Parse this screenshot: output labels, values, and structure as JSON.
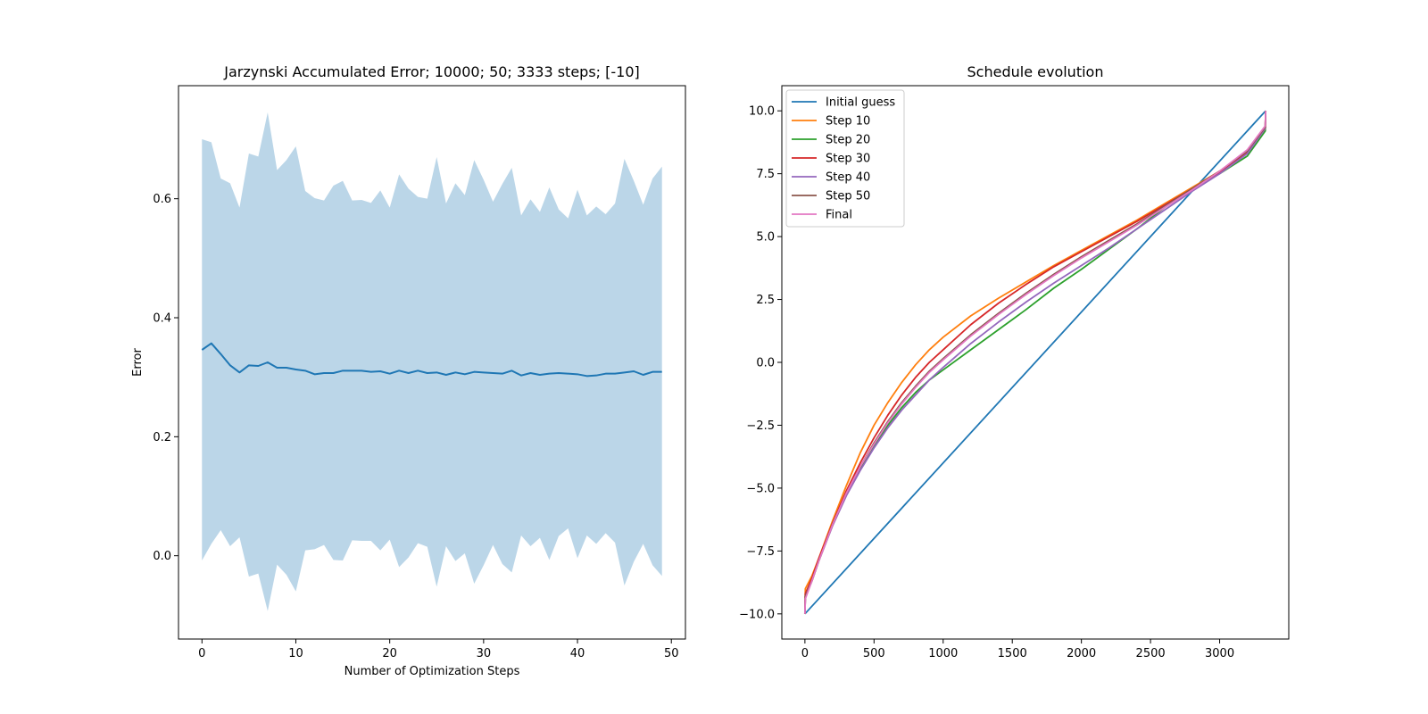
{
  "chart_data": [
    {
      "type": "line",
      "title": "Jarzynski Accumulated Error; 10000; 50; 3333 steps; [-10]",
      "xlabel": "Number of Optimization Steps",
      "ylabel": "Error",
      "xlim": [
        -2.5,
        51.5
      ],
      "ylim": [
        -0.14,
        0.79
      ],
      "xticks": [
        0,
        10,
        20,
        30,
        40,
        50
      ],
      "xtick_labels": [
        "0",
        "10",
        "20",
        "30",
        "40",
        "50"
      ],
      "yticks": [
        0.0,
        0.2,
        0.4,
        0.6
      ],
      "ytick_labels": [
        "0.0",
        "0.2",
        "0.4",
        "0.6"
      ],
      "grid": false,
      "line_color": "#1f77b4",
      "band_color": "#1f77b4",
      "band_opacity": 0.3,
      "x": [
        0,
        1,
        2,
        3,
        4,
        5,
        6,
        7,
        8,
        9,
        10,
        11,
        12,
        13,
        14,
        15,
        16,
        17,
        18,
        19,
        20,
        21,
        22,
        23,
        24,
        25,
        26,
        27,
        28,
        29,
        30,
        31,
        32,
        33,
        34,
        35,
        36,
        37,
        38,
        39,
        40,
        41,
        42,
        43,
        44,
        45,
        46,
        47,
        48,
        49
      ],
      "mean": [
        0.346,
        0.357,
        0.339,
        0.32,
        0.308,
        0.32,
        0.319,
        0.325,
        0.316,
        0.316,
        0.313,
        0.311,
        0.305,
        0.307,
        0.307,
        0.311,
        0.311,
        0.311,
        0.309,
        0.31,
        0.306,
        0.311,
        0.307,
        0.311,
        0.307,
        0.308,
        0.304,
        0.308,
        0.305,
        0.309,
        0.308,
        0.307,
        0.306,
        0.311,
        0.303,
        0.307,
        0.304,
        0.306,
        0.307,
        0.306,
        0.305,
        0.302,
        0.303,
        0.306,
        0.306,
        0.308,
        0.31,
        0.304,
        0.309,
        0.309
      ],
      "upper": [
        0.7,
        0.695,
        0.634,
        0.626,
        0.585,
        0.676,
        0.671,
        0.745,
        0.648,
        0.665,
        0.688,
        0.613,
        0.601,
        0.597,
        0.622,
        0.63,
        0.597,
        0.598,
        0.593,
        0.614,
        0.585,
        0.641,
        0.617,
        0.603,
        0.6,
        0.67,
        0.592,
        0.626,
        0.606,
        0.665,
        0.632,
        0.595,
        0.625,
        0.652,
        0.572,
        0.599,
        0.578,
        0.619,
        0.582,
        0.567,
        0.615,
        0.572,
        0.587,
        0.574,
        0.592,
        0.667,
        0.63,
        0.59,
        0.634,
        0.654
      ],
      "lower": [
        -0.008,
        0.02,
        0.043,
        0.016,
        0.031,
        -0.035,
        -0.03,
        -0.093,
        -0.015,
        -0.032,
        -0.06,
        0.009,
        0.011,
        0.018,
        -0.007,
        -0.008,
        0.026,
        0.025,
        0.025,
        0.009,
        0.027,
        -0.019,
        -0.003,
        0.021,
        0.015,
        -0.052,
        0.016,
        -0.009,
        0.004,
        -0.047,
        -0.016,
        0.018,
        -0.014,
        -0.028,
        0.034,
        0.016,
        0.03,
        -0.007,
        0.033,
        0.046,
        -0.004,
        0.034,
        0.02,
        0.038,
        0.022,
        -0.05,
        -0.01,
        0.02,
        -0.016,
        -0.034
      ]
    },
    {
      "type": "line",
      "title": "Schedule evolution",
      "xlabel": "",
      "ylabel": "",
      "xlim": [
        -167,
        3500
      ],
      "ylim": [
        -11.0,
        11.0
      ],
      "xticks": [
        0,
        500,
        1000,
        1500,
        2000,
        2500,
        3000
      ],
      "xtick_labels": [
        "0",
        "500",
        "1000",
        "1500",
        "2000",
        "2500",
        "3000"
      ],
      "yticks": [
        -10.0,
        -7.5,
        -5.0,
        -2.5,
        0.0,
        2.5,
        5.0,
        7.5,
        10.0
      ],
      "ytick_labels": [
        "−10.0",
        "−7.5",
        "−5.0",
        "−2.5",
        "0.0",
        "2.5",
        "5.0",
        "7.5",
        "10.0"
      ],
      "grid": false,
      "legend_position": "upper left",
      "series": [
        {
          "name": "Initial guess",
          "color": "#1f77b4",
          "x": [
            0,
            3333
          ],
          "y": [
            -10.0,
            10.0
          ]
        },
        {
          "name": "Step 10",
          "color": "#ff7f0e",
          "x": [
            0,
            3,
            50,
            100,
            200,
            300,
            400,
            500,
            600,
            700,
            800,
            900,
            1000,
            1200,
            1400,
            1600,
            1800,
            2000,
            2200,
            2400,
            2600,
            2800,
            3000,
            3200,
            3330,
            3333
          ],
          "y": [
            -10.0,
            -9.0,
            -8.5,
            -7.8,
            -6.3,
            -4.9,
            -3.6,
            -2.5,
            -1.6,
            -0.8,
            -0.1,
            0.5,
            1.0,
            1.85,
            2.55,
            3.2,
            3.85,
            4.45,
            5.05,
            5.65,
            6.3,
            6.95,
            7.6,
            8.4,
            9.3,
            10.0
          ]
        },
        {
          "name": "Step 20",
          "color": "#2ca02c",
          "x": [
            0,
            3,
            50,
            100,
            200,
            300,
            400,
            500,
            600,
            700,
            800,
            900,
            1000,
            1200,
            1400,
            1600,
            1800,
            2000,
            2200,
            2400,
            2600,
            2800,
            3000,
            3200,
            3330,
            3333
          ],
          "y": [
            -10.0,
            -9.3,
            -8.7,
            -7.9,
            -6.4,
            -5.2,
            -4.2,
            -3.3,
            -2.5,
            -1.8,
            -1.2,
            -0.7,
            -0.3,
            0.5,
            1.3,
            2.1,
            2.95,
            3.7,
            4.5,
            5.3,
            6.15,
            6.9,
            7.5,
            8.2,
            9.2,
            10.0
          ]
        },
        {
          "name": "Step 30",
          "color": "#d62728",
          "x": [
            0,
            3,
            50,
            100,
            200,
            300,
            400,
            500,
            600,
            700,
            800,
            900,
            1000,
            1200,
            1400,
            1600,
            1800,
            2000,
            2200,
            2400,
            2600,
            2800,
            3000,
            3200,
            3330,
            3333
          ],
          "y": [
            -10.0,
            -9.2,
            -8.6,
            -7.8,
            -6.4,
            -5.1,
            -4.0,
            -3.0,
            -2.1,
            -1.3,
            -0.6,
            0.0,
            0.5,
            1.5,
            2.35,
            3.1,
            3.8,
            4.4,
            5.0,
            5.6,
            6.25,
            6.9,
            7.55,
            8.35,
            9.3,
            10.0
          ]
        },
        {
          "name": "Step 40",
          "color": "#9467bd",
          "x": [
            0,
            3,
            50,
            100,
            200,
            300,
            400,
            500,
            600,
            700,
            800,
            900,
            1000,
            1200,
            1400,
            1600,
            1800,
            2000,
            2200,
            2400,
            2600,
            2800,
            3000,
            3200,
            3330,
            3333
          ],
          "y": [
            -10.0,
            -9.3,
            -8.7,
            -7.9,
            -6.5,
            -5.3,
            -4.3,
            -3.4,
            -2.6,
            -1.9,
            -1.3,
            -0.7,
            -0.2,
            0.75,
            1.6,
            2.4,
            3.15,
            3.85,
            4.55,
            5.3,
            6.05,
            6.8,
            7.5,
            8.3,
            9.3,
            10.0
          ]
        },
        {
          "name": "Step 50",
          "color": "#8c564b",
          "x": [
            0,
            3,
            50,
            100,
            200,
            300,
            400,
            500,
            600,
            700,
            800,
            900,
            1000,
            1200,
            1400,
            1600,
            1800,
            2000,
            2200,
            2400,
            2600,
            2800,
            3000,
            3200,
            3330,
            3333
          ],
          "y": [
            -10.0,
            -9.3,
            -8.7,
            -7.9,
            -6.45,
            -5.2,
            -4.15,
            -3.2,
            -2.35,
            -1.6,
            -0.95,
            -0.35,
            0.15,
            1.1,
            1.95,
            2.75,
            3.5,
            4.2,
            4.85,
            5.5,
            6.2,
            6.9,
            7.6,
            8.4,
            9.35,
            10.0
          ]
        },
        {
          "name": "Final",
          "color": "#e377c2",
          "x": [
            0,
            3,
            50,
            100,
            200,
            300,
            400,
            500,
            600,
            700,
            800,
            900,
            1000,
            1200,
            1400,
            1600,
            1800,
            2000,
            2200,
            2400,
            2600,
            2800,
            3000,
            3200,
            3330,
            3333
          ],
          "y": [
            -10.0,
            -9.4,
            -8.7,
            -7.9,
            -6.45,
            -5.2,
            -4.15,
            -3.25,
            -2.4,
            -1.65,
            -1.0,
            -0.4,
            0.1,
            1.05,
            1.9,
            2.7,
            3.45,
            4.15,
            4.8,
            5.45,
            6.15,
            6.85,
            7.6,
            8.45,
            9.4,
            10.0
          ]
        }
      ]
    }
  ]
}
